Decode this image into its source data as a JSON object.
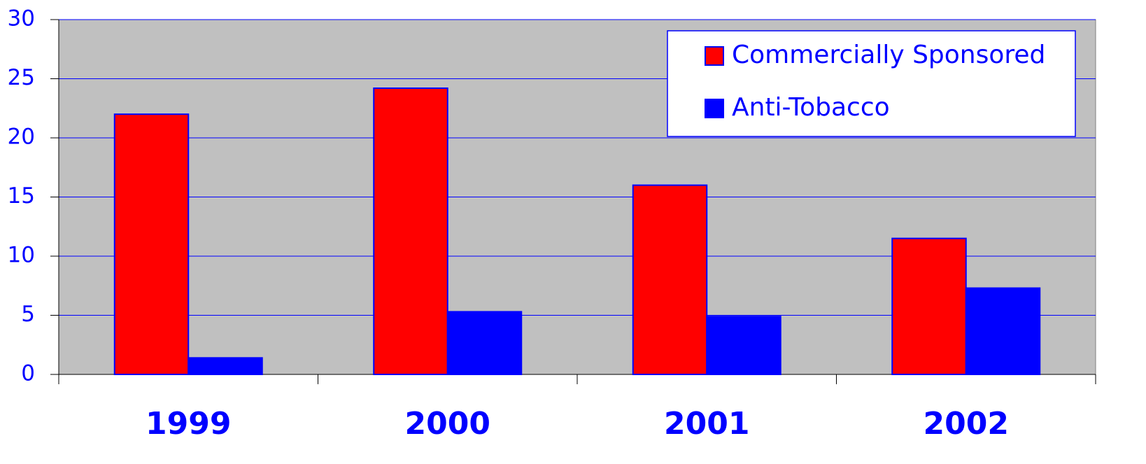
{
  "chart_data": {
    "type": "bar",
    "categories": [
      "1999",
      "2000",
      "2001",
      "2002"
    ],
    "series": [
      {
        "name": "Commercially Sponsored",
        "color": "#ff0000",
        "values": [
          22,
          24.2,
          16,
          11.5
        ]
      },
      {
        "name": "Anti-Tobacco",
        "color": "#0000ff",
        "values": [
          1.4,
          5.3,
          4.9,
          7.3
        ]
      }
    ],
    "ylim": [
      0,
      30
    ],
    "yticks": [
      0,
      5,
      10,
      15,
      20,
      25,
      30
    ],
    "grid": true,
    "legend": "top-right",
    "background": "#c0c0c0"
  }
}
